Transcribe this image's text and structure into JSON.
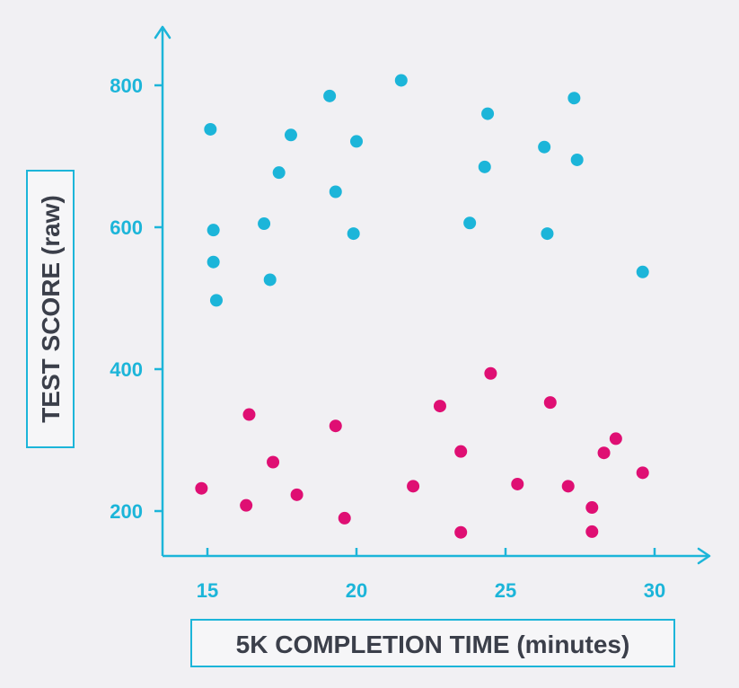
{
  "chart_data": {
    "type": "scatter",
    "xlabel": "5K COMPLETION TIME (minutes)",
    "ylabel": "TEST SCORE (raw)",
    "xlim": [
      13.5,
      31.8
    ],
    "ylim": [
      135,
      870
    ],
    "x_ticks": [
      15,
      20,
      25,
      30
    ],
    "y_ticks": [
      200,
      400,
      600,
      800
    ],
    "grid": false,
    "colors": {
      "axis": "#1cb5d9",
      "label_box": "#1cb5d9",
      "title_text": "#3b3f4a"
    },
    "series": [
      {
        "color": "#1cb5d9",
        "points": [
          [
            15.1,
            738
          ],
          [
            15.2,
            596
          ],
          [
            15.2,
            551
          ],
          [
            15.3,
            497
          ],
          [
            16.9,
            605
          ],
          [
            17.1,
            526
          ],
          [
            17.4,
            677
          ],
          [
            17.8,
            730
          ],
          [
            19.1,
            785
          ],
          [
            19.3,
            650
          ],
          [
            19.9,
            591
          ],
          [
            20.0,
            721
          ],
          [
            21.5,
            807
          ],
          [
            23.8,
            606
          ],
          [
            24.3,
            685
          ],
          [
            24.4,
            760
          ],
          [
            26.3,
            713
          ],
          [
            26.4,
            591
          ],
          [
            27.3,
            782
          ],
          [
            27.4,
            695
          ],
          [
            29.6,
            537
          ]
        ]
      },
      {
        "color": "#df0f73",
        "points": [
          [
            14.8,
            232
          ],
          [
            16.3,
            208
          ],
          [
            16.4,
            336
          ],
          [
            17.2,
            269
          ],
          [
            18.0,
            223
          ],
          [
            19.3,
            320
          ],
          [
            19.6,
            190
          ],
          [
            21.9,
            235
          ],
          [
            22.8,
            348
          ],
          [
            23.5,
            284
          ],
          [
            23.5,
            170
          ],
          [
            24.5,
            394
          ],
          [
            25.4,
            238
          ],
          [
            26.5,
            353
          ],
          [
            27.1,
            235
          ],
          [
            27.9,
            205
          ],
          [
            27.9,
            171
          ],
          [
            28.3,
            282
          ],
          [
            28.7,
            302
          ],
          [
            29.6,
            254
          ]
        ]
      }
    ]
  }
}
